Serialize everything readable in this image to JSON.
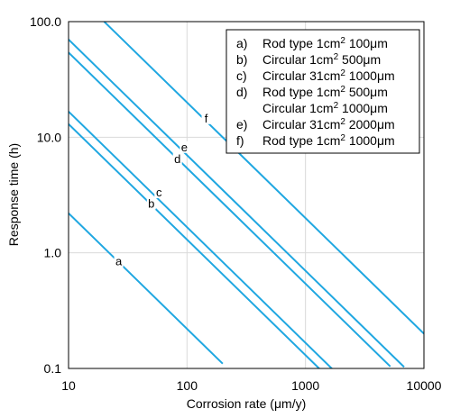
{
  "chart_data": {
    "type": "line",
    "xlabel": "Corrosion rate (μm/y)",
    "ylabel": "Response time (h)",
    "x_scale": "log",
    "y_scale": "log",
    "xlim": [
      10,
      10000
    ],
    "ylim": [
      0.1,
      100
    ],
    "x_ticks": [
      10,
      100,
      1000,
      10000
    ],
    "x_tick_labels": [
      "10",
      "100",
      "1000",
      "10000"
    ],
    "y_ticks": [
      0.1,
      1,
      10,
      100
    ],
    "y_tick_labels": [
      "0.1",
      "1.0",
      "10.0",
      "100.0"
    ],
    "grid": true,
    "legend_position": "top-right",
    "line_color": "#1fa7e1",
    "series": [
      {
        "name": "a",
        "x": [
          10,
          200
        ],
        "y": [
          2.2,
          0.11
        ]
      },
      {
        "name": "b",
        "x": [
          10,
          1400
        ],
        "y": [
          13.0,
          0.093
        ]
      },
      {
        "name": "c",
        "x": [
          10,
          1700
        ],
        "y": [
          16.7,
          0.098
        ]
      },
      {
        "name": "d",
        "x": [
          10,
          5200
        ],
        "y": [
          54,
          0.104
        ]
      },
      {
        "name": "e",
        "x": [
          10,
          6800
        ],
        "y": [
          70,
          0.103
        ]
      },
      {
        "name": "f",
        "x": [
          20,
          10000
        ],
        "y": [
          100,
          0.2
        ]
      }
    ],
    "series_tags": [
      {
        "text": "a",
        "x": 26.5,
        "y": 0.82
      },
      {
        "text": "b",
        "x": 50,
        "y": 2.6
      },
      {
        "text": "c",
        "x": 58,
        "y": 3.25
      },
      {
        "text": "d",
        "x": 83,
        "y": 6.3
      },
      {
        "text": "e",
        "x": 95,
        "y": 8.0
      },
      {
        "text": "f",
        "x": 145,
        "y": 14.2
      }
    ],
    "legend": {
      "letters": [
        "a)",
        "b)",
        "c)",
        "d)",
        "",
        "e)",
        "f)"
      ],
      "entries": [
        {
          "pre": "Rod type 1cm",
          "sup": "2",
          "post": " 100μm"
        },
        {
          "pre": "Circular 1cm",
          "sup": "2",
          "post": " 500μm"
        },
        {
          "pre": "Circular 31cm",
          "sup": "2",
          "post": " 1000μm"
        },
        {
          "pre": "Rod type 1cm",
          "sup": "2",
          "post": " 500μm"
        },
        {
          "pre": "Circular 1cm",
          "sup": "2",
          "post": " 1000μm"
        },
        {
          "pre": "Circular 31cm",
          "sup": "2",
          "post": " 2000μm"
        },
        {
          "pre": "Rod type 1cm",
          "sup": "2",
          "post": " 1000μm"
        }
      ]
    }
  }
}
